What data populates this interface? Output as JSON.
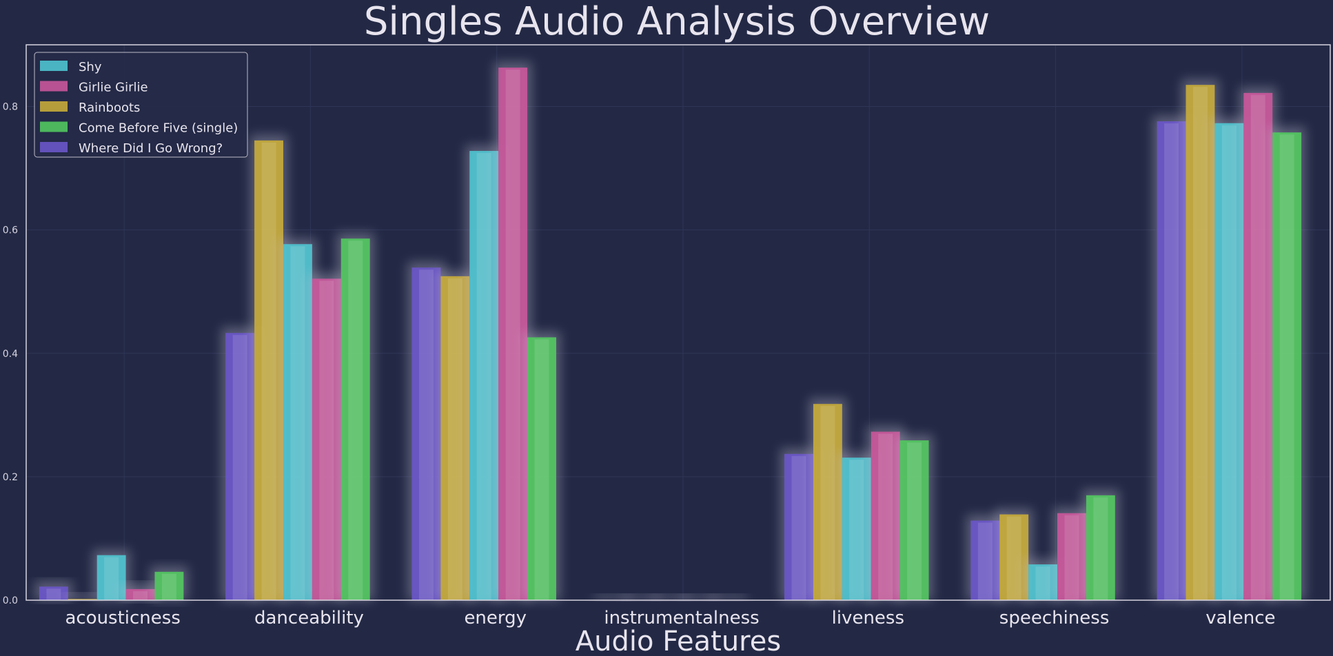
{
  "chart_data": {
    "type": "bar",
    "title": "Singles Audio Analysis Overview",
    "xlabel": "Audio Features",
    "ylabel": "",
    "ylim": [
      0,
      0.9
    ],
    "yticks": [
      "0.0",
      "0.2",
      "0.4",
      "0.6",
      "0.8"
    ],
    "ytick_values": [
      0,
      0.2,
      0.4,
      0.6,
      0.8
    ],
    "grid": true,
    "legend_position": "top-left",
    "categories": [
      "acousticness",
      "danceability",
      "energy",
      "instrumentalness",
      "liveness",
      "speechiness",
      "valence"
    ],
    "series": [
      {
        "name": "Where Did I Go Wrong?",
        "color": "#6a56c8",
        "values": [
          0.022,
          0.433,
          0.539,
          0.0,
          0.237,
          0.129,
          0.776
        ]
      },
      {
        "name": "Rainboots",
        "color": "#c7aa3a",
        "values": [
          0.002,
          0.745,
          0.525,
          0.0,
          0.318,
          0.139,
          0.835
        ]
      },
      {
        "name": "Shy",
        "color": "#4fc3cf",
        "values": [
          0.073,
          0.577,
          0.728,
          0.0,
          0.231,
          0.058,
          0.773
        ]
      },
      {
        "name": "Girlie Girlie",
        "color": "#c9579a",
        "values": [
          0.018,
          0.521,
          0.863,
          0.0,
          0.273,
          0.141,
          0.822
        ]
      },
      {
        "name": "Come Before Five (single)",
        "color": "#52c760",
        "values": [
          0.046,
          0.586,
          0.426,
          0.0,
          0.259,
          0.17,
          0.758
        ]
      }
    ],
    "legend_order": [
      "Shy",
      "Girlie Girlie",
      "Rainboots",
      "Come Before Five (single)",
      "Where Did I Go Wrong?"
    ]
  },
  "colors": {
    "background": "#232945",
    "frame": "#d8d4e0",
    "grid": "#2e3556",
    "text": "#e8e4ee"
  }
}
